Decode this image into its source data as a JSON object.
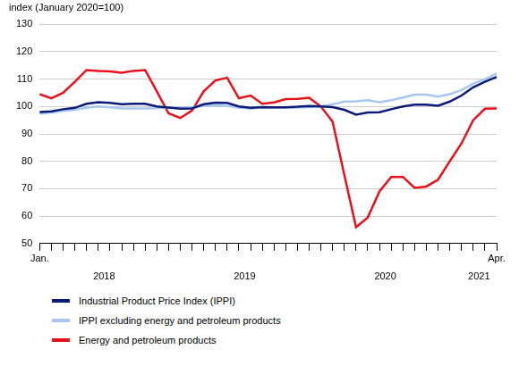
{
  "chart_data": {
    "type": "line",
    "y_label": "index (January 2020=100)",
    "categories": [
      "Jan.",
      null,
      null,
      null,
      null,
      null,
      null,
      null,
      null,
      null,
      null,
      null,
      null,
      null,
      null,
      null,
      null,
      null,
      null,
      null,
      null,
      null,
      null,
      null,
      null,
      null,
      null,
      null,
      null,
      null,
      null,
      null,
      null,
      null,
      null,
      null,
      null,
      null,
      null,
      "Apr."
    ],
    "category_groups": [
      {
        "label": "2018",
        "start": 0,
        "end": 11
      },
      {
        "label": "2019",
        "start": 12,
        "end": 23
      },
      {
        "label": "2020",
        "start": 24,
        "end": 35
      },
      {
        "label": "2021",
        "start": 36,
        "end": 39
      }
    ],
    "series": [
      {
        "name": "Industrial Product Price Index (IPPI)",
        "color": "#0c1b7a",
        "values": [
          98,
          98.2,
          99,
          99.5,
          101,
          101.6,
          101.3,
          100.8,
          101,
          101,
          100,
          99.6,
          99.2,
          99.3,
          100.8,
          101.4,
          101.3,
          100,
          99.5,
          99.8,
          99.7,
          99.7,
          99.9,
          100.2,
          100,
          99.8,
          98.8,
          97,
          97.8,
          97.9,
          99,
          100,
          100.7,
          100.7,
          100.3,
          101.8,
          104,
          107,
          109,
          110.8
        ]
      },
      {
        "name": "IPPI excluding energy and petroleum products",
        "color": "#a6c8ef",
        "values": [
          97.3,
          97.8,
          98.4,
          98.8,
          99.5,
          100,
          99.7,
          99.3,
          99.3,
          99.3,
          99.4,
          99.6,
          99.7,
          99.8,
          100.2,
          100.4,
          100.2,
          99.6,
          99.3,
          99.6,
          99.6,
          99.6,
          99.6,
          99.8,
          100,
          100.8,
          101.8,
          101.9,
          102.3,
          101.6,
          102.3,
          103.3,
          104.3,
          104.3,
          103.6,
          104.5,
          106,
          108.3,
          110,
          112
        ]
      },
      {
        "name": "Energy and petroleum products",
        "color": "#e8101a",
        "values": [
          104.5,
          103,
          105,
          109,
          113.3,
          113,
          112.8,
          112.3,
          113,
          113.3,
          105.5,
          97.5,
          95.8,
          98.5,
          105.5,
          109.5,
          110.5,
          103,
          104,
          101,
          101.5,
          102.7,
          102.8,
          103.2,
          100,
          94.5,
          75,
          56,
          59.5,
          69,
          74.3,
          74.3,
          70.3,
          70.8,
          73.3,
          80,
          86.5,
          95,
          99.2,
          99.3
        ]
      }
    ],
    "ylim": [
      50,
      130
    ],
    "yticks": [
      50,
      60,
      70,
      80,
      90,
      100,
      110,
      120,
      130
    ],
    "grid": true,
    "legend": "bottom"
  }
}
